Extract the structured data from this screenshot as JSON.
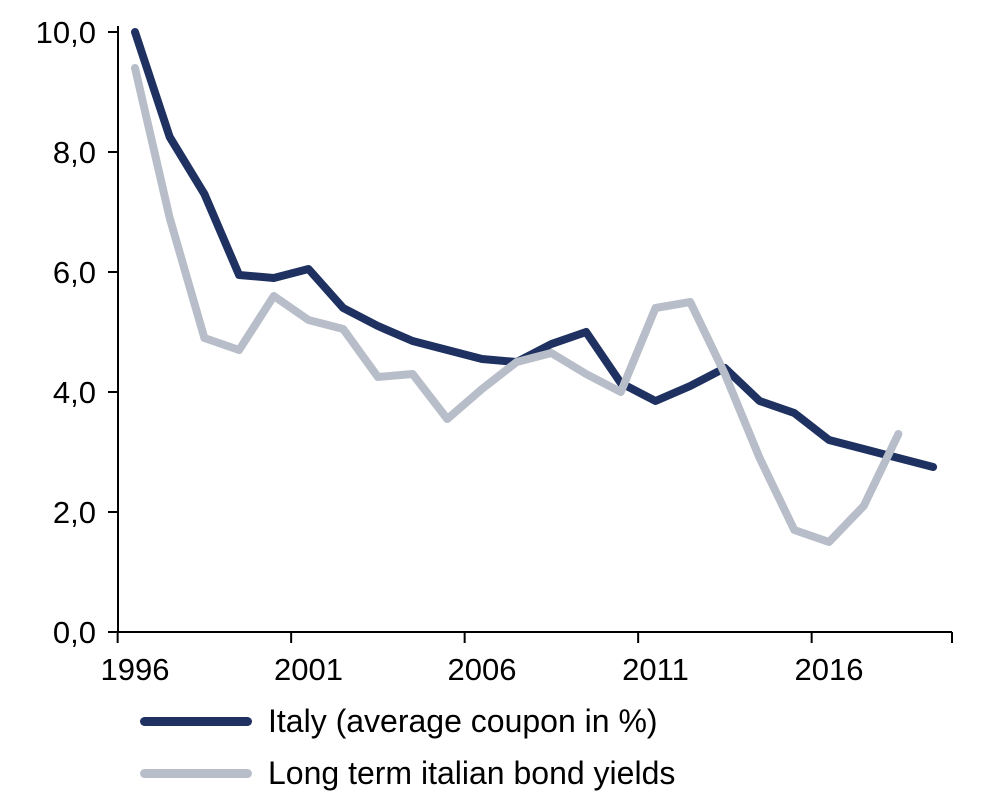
{
  "chart_data": {
    "type": "line",
    "title": "",
    "xlabel": "",
    "ylabel": "",
    "grid": false,
    "legend_position": "bottom-left",
    "x_axis": {
      "range": [
        1995.5,
        2019.5
      ],
      "tick_label_years": [
        1996,
        2001,
        2006,
        2011,
        2016
      ],
      "tick_labels": [
        "1996",
        "2001",
        "2006",
        "2011",
        "2016"
      ],
      "boundary_tick_years": [
        1995.5,
        2000.5,
        2005.5,
        2010.5,
        2015.5
      ]
    },
    "y_axis": {
      "range": [
        0,
        10
      ],
      "ticks": [
        0,
        2,
        4,
        6,
        8,
        10
      ],
      "tick_labels": [
        "0,0",
        "2,0",
        "4,0",
        "6,0",
        "8,0",
        "10,0"
      ]
    },
    "series": [
      {
        "name": "Italy (average coupon in %)",
        "color": "#1e3160",
        "x": [
          1996,
          1997,
          1998,
          1999,
          2000,
          2001,
          2002,
          2003,
          2004,
          2005,
          2006,
          2007,
          2008,
          2009,
          2010,
          2011,
          2012,
          2013,
          2014,
          2015,
          2016,
          2017,
          2018,
          2019
        ],
        "values": [
          10.0,
          8.25,
          7.3,
          5.95,
          5.9,
          6.05,
          5.4,
          5.1,
          4.85,
          4.7,
          4.55,
          4.5,
          4.8,
          5.0,
          4.15,
          3.85,
          4.1,
          4.4,
          3.85,
          3.65,
          3.2,
          3.05,
          2.9,
          2.75
        ]
      },
      {
        "name": "Long term italian bond yields",
        "color": "#b8bec9",
        "x": [
          1996,
          1997,
          1998,
          1999,
          2000,
          2001,
          2002,
          2003,
          2004,
          2005,
          2006,
          2007,
          2008,
          2009,
          2010,
          2011,
          2012,
          2013,
          2014,
          2015,
          2016,
          2017,
          2018
        ],
        "values": [
          9.4,
          6.9,
          4.9,
          4.7,
          5.6,
          5.2,
          5.05,
          4.25,
          4.3,
          3.55,
          4.05,
          4.5,
          4.65,
          4.3,
          4.0,
          5.4,
          5.5,
          4.3,
          2.9,
          1.7,
          1.5,
          2.1,
          3.3
        ]
      }
    ]
  },
  "legend": {
    "items": [
      {
        "label": "Italy (average coupon in %)"
      },
      {
        "label": "Long term italian bond yields"
      }
    ]
  },
  "colors": {
    "axis": "#000000",
    "background": "#ffffff",
    "text": "#000000",
    "series1": "#1e3160",
    "series2": "#b8bec9"
  }
}
